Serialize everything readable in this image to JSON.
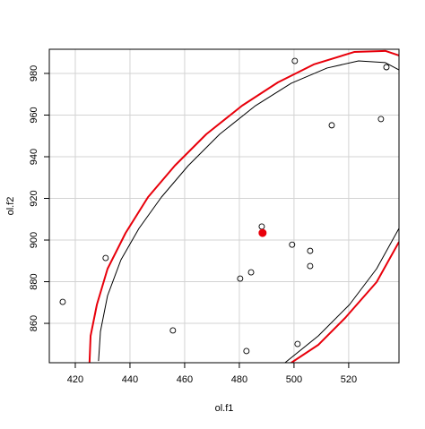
{
  "chart_data": {
    "type": "scatter",
    "xlabel": "ol.f1",
    "ylabel": "ol.f2",
    "xlim": [
      410.5,
      538.4
    ],
    "ylim": [
      841.1,
      991.6
    ],
    "xticks": [
      420,
      440,
      460,
      480,
      500,
      520
    ],
    "yticks": [
      860,
      880,
      900,
      920,
      940,
      960,
      980
    ],
    "grid": true,
    "points": {
      "color": "#000000",
      "x": [
        415.4,
        431.1,
        455.7,
        480.3,
        484.3,
        482.6,
        488.2,
        499.3,
        505.9,
        505.9,
        500.3,
        513.8,
        531.8,
        533.8,
        501.3
      ],
      "y": [
        870.3,
        891.4,
        856.6,
        881.5,
        884.5,
        846.7,
        906.5,
        897.8,
        894.8,
        887.5,
        986.0,
        955.1,
        958.1,
        983.0,
        850.1
      ]
    },
    "center": {
      "color": "#e8000b",
      "x": 488.5,
      "y": 903.4
    },
    "ellipses": [
      {
        "color": "#000000",
        "x": [
          428.5,
          429.2,
          431.8,
          436.7,
          443.3,
          451.5,
          461.3,
          472.8,
          485.9,
          499.0,
          512.1,
          523.6,
          533.4,
          538.4,
          null,
          538.4,
          530.2,
          520.3,
          508.9,
          496.7
        ],
        "y": [
          841.9,
          856.1,
          873.3,
          890.5,
          905.6,
          920.6,
          935.7,
          950.8,
          964.5,
          975.3,
          982.6,
          986.0,
          985.2,
          981.7,
          null,
          905.6,
          886.2,
          869.0,
          854.0,
          841.1
        ]
      },
      {
        "color": "#e8000b",
        "x": [
          425.2,
          425.6,
          427.9,
          431.8,
          438.4,
          446.6,
          456.4,
          467.9,
          481.0,
          494.1,
          507.2,
          522.0,
          533.4,
          538.4,
          null,
          538.4,
          530.2,
          518.7,
          508.9,
          499.0
        ],
        "y": [
          841.1,
          854.0,
          869.0,
          886.2,
          903.4,
          920.6,
          935.7,
          950.8,
          964.5,
          975.7,
          984.3,
          990.3,
          990.8,
          988.6,
          null,
          899.1,
          879.8,
          862.6,
          849.7,
          841.1
        ]
      }
    ]
  }
}
